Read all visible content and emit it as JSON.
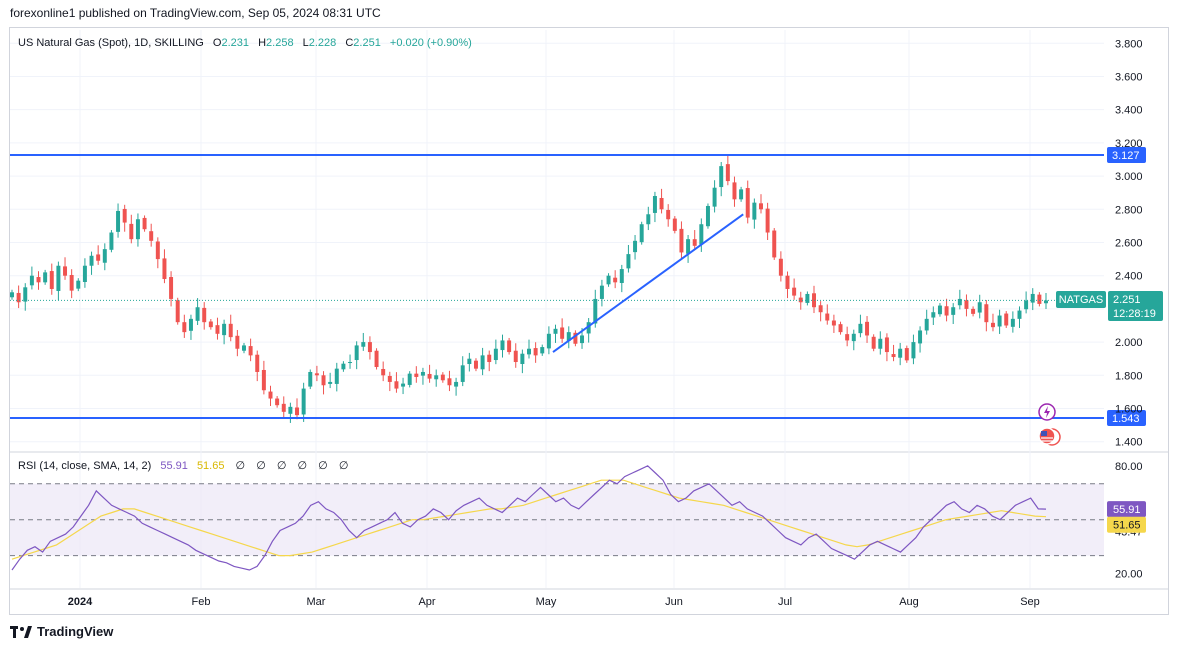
{
  "header": {
    "publisher_line": "forexonline1 published on TradingView.com, Sep 05, 2024 08:31 UTC"
  },
  "legend": {
    "symbol": "US Natural Gas (Spot), 1D, SKILLING",
    "o_label": "O",
    "o_value": "2.231",
    "h_label": "H",
    "h_value": "2.258",
    "l_label": "L",
    "l_value": "2.228",
    "c_label": "C",
    "c_value": "2.251",
    "change": "+0.020 (+0.90%)"
  },
  "rsi_legend": {
    "label": "RSI (14, close, SMA, 14, 2)",
    "rsi_value": "55.91",
    "sma_value": "51.65",
    "extras": [
      "∅",
      "∅",
      "∅",
      "∅",
      "∅",
      "∅"
    ]
  },
  "price_badge": {
    "symbol": "NATGAS",
    "price": "2.251",
    "countdown": "12:28:19"
  },
  "colors": {
    "up": "#26a69a",
    "down": "#ef5350",
    "hline": "#2962ff",
    "rsi": "#7e57c2",
    "rsi_sma": "#f5d74c",
    "band": "#ede7f6"
  },
  "footer": {
    "brand": "TradingView"
  },
  "icons": [
    "lightning-icon",
    "us-flag-icon",
    "tradingview-logo-icon"
  ],
  "chart_data": {
    "type": "candlestick",
    "title": "US Natural Gas (Spot), 1D, SKILLING",
    "price_axis": {
      "ticks": [
        "3.800",
        "3.600",
        "3.400",
        "3.200",
        "3.000",
        "2.800",
        "2.600",
        "2.400",
        "2.200",
        "2.000",
        "1.800",
        "1.600",
        "1.400"
      ],
      "range": [
        1.35,
        3.88
      ]
    },
    "time_axis": {
      "ticks": [
        "2024",
        "Feb",
        "Mar",
        "Apr",
        "May",
        "Jun",
        "Jul",
        "Aug",
        "Sep"
      ]
    },
    "horizontal_lines": [
      {
        "value": 3.127,
        "label": "3.127"
      },
      {
        "value": 1.543,
        "label": "1.543"
      }
    ],
    "trendline": {
      "from": {
        "date": "2024-05-01",
        "value": 1.94
      },
      "to": {
        "date": "2024-06-17",
        "value": 2.77
      }
    },
    "last_price": 2.251,
    "closes": [
      2.3,
      2.24,
      2.33,
      2.4,
      2.36,
      2.42,
      2.32,
      2.46,
      2.4,
      2.31,
      2.37,
      2.46,
      2.52,
      2.49,
      2.56,
      2.66,
      2.79,
      2.72,
      2.62,
      2.74,
      2.68,
      2.61,
      2.5,
      2.38,
      2.26,
      2.12,
      2.06,
      2.14,
      2.21,
      2.12,
      2.09,
      2.05,
      2.11,
      2.03,
      1.96,
      1.98,
      1.92,
      1.82,
      1.71,
      1.66,
      1.62,
      1.58,
      1.61,
      1.56,
      1.72,
      1.82,
      1.8,
      1.74,
      1.76,
      1.84,
      1.87,
      1.88,
      1.98,
      2.0,
      1.94,
      1.85,
      1.8,
      1.76,
      1.72,
      1.75,
      1.81,
      1.79,
      1.82,
      1.78,
      1.8,
      1.77,
      1.74,
      1.76,
      1.86,
      1.9,
      1.84,
      1.92,
      1.88,
      1.96,
      2.01,
      1.94,
      1.88,
      1.93,
      1.96,
      1.92,
      1.97,
      2.05,
      2.08,
      2.02,
      2.06,
      1.99,
      2.04,
      2.12,
      2.26,
      2.34,
      2.4,
      2.36,
      2.44,
      2.53,
      2.61,
      2.71,
      2.77,
      2.88,
      2.8,
      2.74,
      2.67,
      2.54,
      2.62,
      2.58,
      2.71,
      2.82,
      2.93,
      3.06,
      2.97,
      2.86,
      2.92,
      2.75,
      2.84,
      2.8,
      2.66,
      2.51,
      2.4,
      2.32,
      2.28,
      2.24,
      2.29,
      2.21,
      2.18,
      2.13,
      2.1,
      2.06,
      2.01,
      2.05,
      2.11,
      2.04,
      1.96,
      2.02,
      1.94,
      1.91,
      1.96,
      1.89,
      2.0,
      2.07,
      2.14,
      2.18,
      2.22,
      2.16,
      2.21,
      2.26,
      2.2,
      2.17,
      2.24,
      2.12,
      2.09,
      2.16,
      2.1,
      2.14,
      2.19,
      2.25,
      2.29,
      2.23,
      2.251
    ]
  },
  "rsi_data": {
    "type": "line",
    "axis": {
      "ticks": [
        "80.00",
        "57.43",
        "43.47",
        "20.00"
      ],
      "range": [
        12,
        86
      ]
    },
    "upper_band": 70,
    "middle_band": 50,
    "lower_band": 30,
    "rsi": [
      22,
      28,
      33,
      35,
      32,
      38,
      40,
      42,
      46,
      52,
      58,
      66,
      62,
      58,
      56,
      54,
      52,
      48,
      46,
      44,
      42,
      40,
      38,
      36,
      33,
      31,
      29,
      27,
      26,
      24,
      23,
      22,
      24,
      30,
      38,
      44,
      46,
      48,
      52,
      58,
      60,
      56,
      54,
      50,
      44,
      40,
      44,
      46,
      48,
      50,
      54,
      48,
      46,
      50,
      52,
      56,
      54,
      50,
      55,
      58,
      60,
      62,
      58,
      56,
      54,
      58,
      62,
      60,
      64,
      68,
      64,
      60,
      62,
      58,
      56,
      60,
      64,
      68,
      72,
      70,
      74,
      76,
      78,
      80,
      76,
      72,
      64,
      60,
      62,
      66,
      68,
      70,
      66,
      62,
      58,
      60,
      56,
      54,
      52,
      48,
      44,
      40,
      38,
      36,
      40,
      42,
      38,
      34,
      32,
      30,
      28,
      32,
      36,
      38,
      36,
      34,
      32,
      36,
      40,
      46,
      50,
      54,
      58,
      60,
      56,
      54,
      58,
      56,
      52,
      50,
      54,
      58,
      60,
      62,
      56,
      55.91
    ],
    "sma": [
      28,
      30,
      32,
      34,
      36,
      40,
      44,
      48,
      52,
      54,
      56,
      56,
      54,
      52,
      50,
      48,
      46,
      44,
      42,
      40,
      38,
      36,
      34,
      32,
      30,
      30,
      31,
      32,
      34,
      36,
      38,
      40,
      42,
      44,
      46,
      48,
      50,
      50,
      51,
      52,
      53,
      54,
      55,
      56,
      56,
      57,
      58,
      60,
      62,
      64,
      66,
      68,
      70,
      72,
      72,
      72,
      70,
      68,
      66,
      64,
      62,
      61,
      60,
      59,
      58,
      56,
      54,
      52,
      50,
      48,
      46,
      44,
      42,
      40,
      38,
      36,
      35,
      36,
      38,
      40,
      42,
      44,
      46,
      48,
      50,
      51,
      52,
      53,
      54,
      55,
      54,
      53,
      52,
      51.65
    ]
  }
}
